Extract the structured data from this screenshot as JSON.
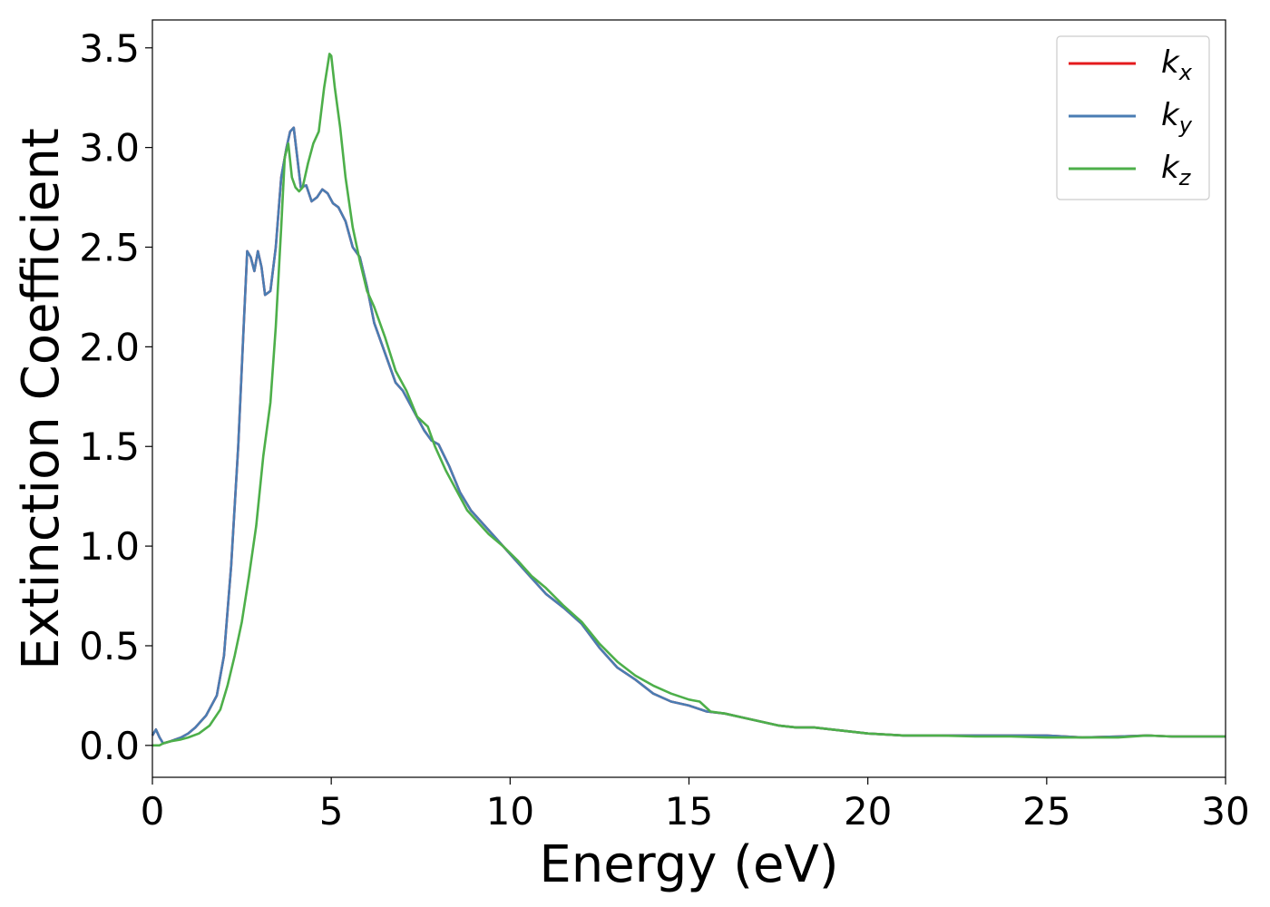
{
  "chart_data": {
    "type": "line",
    "xlabel": "Energy (eV)",
    "ylabel": "Extinction Coefficient",
    "xlim": [
      0,
      30
    ],
    "ylim": [
      -0.16,
      3.64
    ],
    "xticks": [
      "0",
      "5",
      "10",
      "15",
      "20",
      "25",
      "30"
    ],
    "yticks": [
      "0.0",
      "0.5",
      "1.0",
      "1.5",
      "2.0",
      "2.5",
      "3.0",
      "3.5"
    ],
    "grid": false,
    "legend_position": "top-right",
    "series": [
      {
        "name": "k",
        "subscript": "x",
        "color": "#e41a1c",
        "x": [
          0,
          0.1,
          0.2,
          0.3,
          0.5,
          0.8,
          1.0,
          1.2,
          1.5,
          1.8,
          2.0,
          2.2,
          2.4,
          2.55,
          2.65,
          2.75,
          2.85,
          2.95,
          3.05,
          3.15,
          3.3,
          3.45,
          3.6,
          3.75,
          3.85,
          3.95,
          4.05,
          4.15,
          4.3,
          4.45,
          4.6,
          4.75,
          4.9,
          5.05,
          5.2,
          5.4,
          5.6,
          5.8,
          6.0,
          6.2,
          6.5,
          6.8,
          7.0,
          7.3,
          7.6,
          7.8,
          8.0,
          8.3,
          8.6,
          8.9,
          9.2,
          9.6,
          10.0,
          10.5,
          11.0,
          11.5,
          12.0,
          12.5,
          13.0,
          13.5,
          14.0,
          14.5,
          15.0,
          15.5,
          16.0,
          16.5,
          17.0,
          17.5,
          18.0,
          18.5,
          19.0,
          20.0,
          21.0,
          22.0,
          23.0,
          24.0,
          25.0,
          26.0,
          27.0,
          27.8,
          28.5,
          29.0,
          30.0
        ],
        "y": [
          0.05,
          0.08,
          0.04,
          0.01,
          0.02,
          0.04,
          0.06,
          0.09,
          0.15,
          0.25,
          0.45,
          0.9,
          1.5,
          2.1,
          2.48,
          2.45,
          2.38,
          2.48,
          2.4,
          2.26,
          2.28,
          2.5,
          2.85,
          3.0,
          3.08,
          3.1,
          2.95,
          2.8,
          2.81,
          2.73,
          2.75,
          2.79,
          2.77,
          2.72,
          2.7,
          2.63,
          2.5,
          2.45,
          2.3,
          2.12,
          1.97,
          1.82,
          1.78,
          1.68,
          1.58,
          1.53,
          1.51,
          1.4,
          1.27,
          1.18,
          1.12,
          1.04,
          0.96,
          0.86,
          0.76,
          0.69,
          0.61,
          0.49,
          0.39,
          0.33,
          0.26,
          0.22,
          0.2,
          0.17,
          0.16,
          0.14,
          0.12,
          0.1,
          0.09,
          0.09,
          0.08,
          0.06,
          0.05,
          0.05,
          0.05,
          0.05,
          0.05,
          0.04,
          0.045,
          0.05,
          0.045,
          0.045,
          0.045
        ]
      },
      {
        "name": "k",
        "subscript": "y",
        "color": "#4a7db3",
        "x": [
          0,
          0.1,
          0.2,
          0.3,
          0.5,
          0.8,
          1.0,
          1.2,
          1.5,
          1.8,
          2.0,
          2.2,
          2.4,
          2.55,
          2.65,
          2.75,
          2.85,
          2.95,
          3.05,
          3.15,
          3.3,
          3.45,
          3.6,
          3.75,
          3.85,
          3.95,
          4.05,
          4.15,
          4.3,
          4.45,
          4.6,
          4.75,
          4.9,
          5.05,
          5.2,
          5.4,
          5.6,
          5.8,
          6.0,
          6.2,
          6.5,
          6.8,
          7.0,
          7.3,
          7.6,
          7.8,
          8.0,
          8.3,
          8.6,
          8.9,
          9.2,
          9.6,
          10.0,
          10.5,
          11.0,
          11.5,
          12.0,
          12.5,
          13.0,
          13.5,
          14.0,
          14.5,
          15.0,
          15.5,
          16.0,
          16.5,
          17.0,
          17.5,
          18.0,
          18.5,
          19.0,
          20.0,
          21.0,
          22.0,
          23.0,
          24.0,
          25.0,
          26.0,
          27.0,
          27.8,
          28.5,
          29.0,
          30.0
        ],
        "y": [
          0.05,
          0.08,
          0.04,
          0.01,
          0.02,
          0.04,
          0.06,
          0.09,
          0.15,
          0.25,
          0.45,
          0.9,
          1.5,
          2.1,
          2.48,
          2.45,
          2.38,
          2.48,
          2.4,
          2.26,
          2.28,
          2.5,
          2.85,
          3.0,
          3.08,
          3.1,
          2.95,
          2.8,
          2.81,
          2.73,
          2.75,
          2.79,
          2.77,
          2.72,
          2.7,
          2.63,
          2.5,
          2.45,
          2.3,
          2.12,
          1.97,
          1.82,
          1.78,
          1.68,
          1.58,
          1.53,
          1.51,
          1.4,
          1.27,
          1.18,
          1.12,
          1.04,
          0.96,
          0.86,
          0.76,
          0.69,
          0.61,
          0.49,
          0.39,
          0.33,
          0.26,
          0.22,
          0.2,
          0.17,
          0.16,
          0.14,
          0.12,
          0.1,
          0.09,
          0.09,
          0.08,
          0.06,
          0.05,
          0.05,
          0.05,
          0.05,
          0.05,
          0.04,
          0.045,
          0.05,
          0.045,
          0.045,
          0.045
        ]
      },
      {
        "name": "k",
        "subscript": "z",
        "color": "#4daf4a",
        "x": [
          0,
          0.1,
          0.2,
          0.3,
          0.5,
          0.8,
          1.0,
          1.3,
          1.6,
          1.9,
          2.1,
          2.3,
          2.5,
          2.7,
          2.9,
          3.1,
          3.3,
          3.45,
          3.6,
          3.7,
          3.8,
          3.9,
          4.0,
          4.1,
          4.2,
          4.35,
          4.5,
          4.65,
          4.8,
          4.95,
          5.0,
          5.1,
          5.25,
          5.4,
          5.6,
          5.8,
          6.0,
          6.2,
          6.5,
          6.8,
          7.1,
          7.4,
          7.7,
          7.9,
          8.2,
          8.5,
          8.8,
          9.1,
          9.4,
          9.8,
          10.2,
          10.6,
          11.0,
          11.5,
          12.0,
          12.5,
          13.0,
          13.5,
          14.0,
          14.5,
          15.0,
          15.3,
          15.6,
          16.0,
          16.5,
          17.0,
          17.5,
          18.0,
          18.5,
          19.0,
          20.0,
          21.0,
          22.0,
          23.0,
          24.0,
          25.0,
          26.0,
          27.0,
          27.8,
          28.5,
          29.0,
          30.0
        ],
        "y": [
          0.0,
          0.0,
          0.0,
          0.01,
          0.02,
          0.03,
          0.04,
          0.06,
          0.1,
          0.18,
          0.3,
          0.45,
          0.62,
          0.85,
          1.1,
          1.45,
          1.72,
          2.1,
          2.6,
          2.95,
          3.02,
          2.85,
          2.8,
          2.78,
          2.8,
          2.92,
          3.02,
          3.08,
          3.3,
          3.47,
          3.46,
          3.3,
          3.1,
          2.85,
          2.6,
          2.43,
          2.28,
          2.2,
          2.05,
          1.88,
          1.78,
          1.65,
          1.6,
          1.5,
          1.38,
          1.28,
          1.18,
          1.12,
          1.06,
          1.0,
          0.93,
          0.85,
          0.79,
          0.7,
          0.62,
          0.51,
          0.42,
          0.35,
          0.3,
          0.26,
          0.23,
          0.22,
          0.17,
          0.16,
          0.14,
          0.12,
          0.1,
          0.09,
          0.09,
          0.08,
          0.06,
          0.05,
          0.05,
          0.045,
          0.045,
          0.04,
          0.04,
          0.04,
          0.05,
          0.045,
          0.045,
          0.045
        ]
      }
    ]
  }
}
